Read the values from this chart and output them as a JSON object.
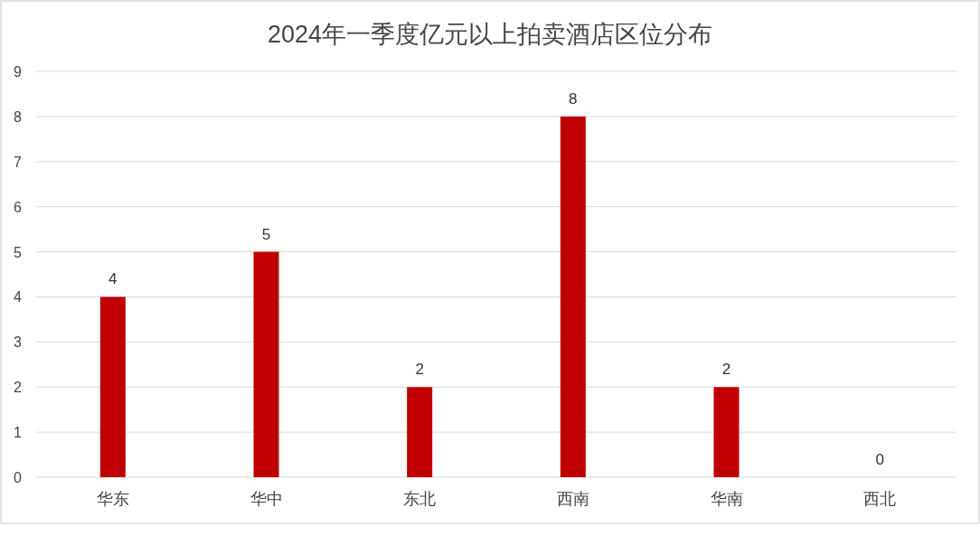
{
  "chart_data": {
    "type": "bar",
    "title": "2024年一季度亿元以上拍卖酒店区位分布",
    "categories": [
      "华东",
      "华中",
      "东北",
      "西南",
      "华南",
      "西北"
    ],
    "values": [
      4,
      5,
      2,
      8,
      2,
      0
    ],
    "color": "#c00000",
    "ylim": [
      0,
      9
    ],
    "yticks": [
      0,
      1,
      2,
      3,
      4,
      5,
      6,
      7,
      8,
      9
    ],
    "grid": "y",
    "data_labels": true
  }
}
